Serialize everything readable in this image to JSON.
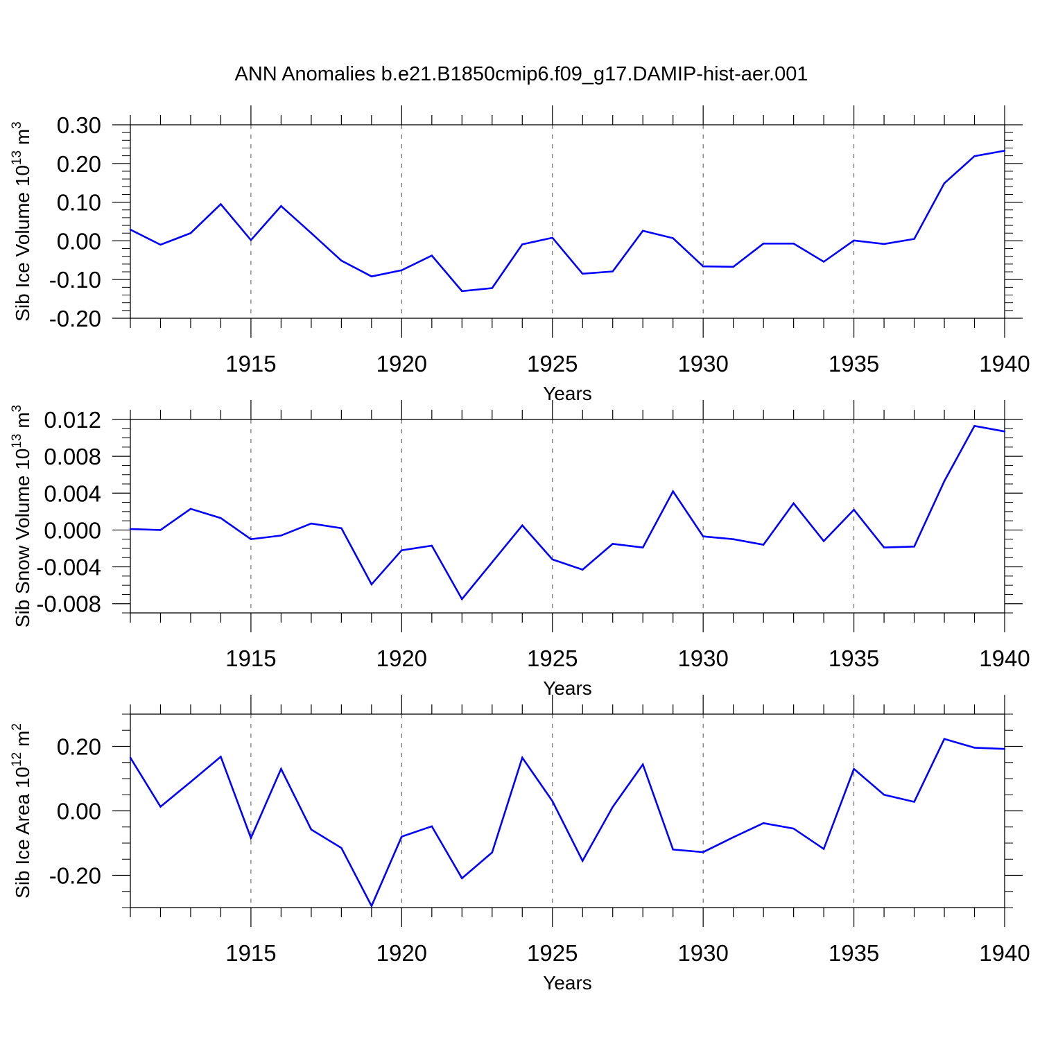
{
  "title": "ANN Anomalies b.e21.B1850cmip6.f09_g17.DAMIP-hist-aer.001",
  "colors": {
    "line": "#0000ff",
    "axis": "#000000",
    "grid": "#555555"
  },
  "chart_data": [
    {
      "type": "line",
      "ylabel_prefix": "Sib Ice Volume 10",
      "ylabel_exp": "13",
      "ylabel_unit": " m",
      "ylabel_unit_exp": "3",
      "xlabel": "Years",
      "xlim": [
        1911,
        1940
      ],
      "ylim": [
        -0.2,
        0.3
      ],
      "yticks": [
        -0.2,
        -0.1,
        0.0,
        0.1,
        0.2,
        0.3
      ],
      "ytick_labels": [
        "-0.20",
        "-0.10",
        "0.00",
        "0.10",
        "0.20",
        "0.30"
      ],
      "yminor_step": 0.02,
      "xticks": [
        1915,
        1920,
        1925,
        1930,
        1935,
        1940
      ],
      "xtick_labels": [
        "1915",
        "1920",
        "1925",
        "1930",
        "1935",
        "1940"
      ],
      "x": [
        1911,
        1912,
        1913,
        1914,
        1915,
        1916,
        1917,
        1918,
        1919,
        1920,
        1921,
        1922,
        1923,
        1924,
        1925,
        1926,
        1927,
        1928,
        1929,
        1930,
        1931,
        1932,
        1933,
        1934,
        1935,
        1936,
        1937,
        1938,
        1939,
        1940
      ],
      "values": [
        0.029,
        -0.01,
        0.02,
        0.095,
        0.002,
        0.09,
        0.02,
        -0.051,
        -0.092,
        -0.076,
        -0.038,
        -0.13,
        -0.122,
        -0.009,
        0.008,
        -0.085,
        -0.079,
        0.026,
        0.007,
        -0.066,
        -0.067,
        -0.007,
        -0.007,
        -0.054,
        0.001,
        -0.008,
        0.005,
        0.149,
        0.219,
        0.233
      ]
    },
    {
      "type": "line",
      "ylabel_prefix": "Sib Snow Volume 10",
      "ylabel_exp": "13",
      "ylabel_unit": " m",
      "ylabel_unit_exp": "3",
      "xlabel": "Years",
      "xlim": [
        1911,
        1940
      ],
      "ylim": [
        -0.009,
        0.012
      ],
      "yticks": [
        -0.008,
        -0.004,
        0.0,
        0.004,
        0.008,
        0.012
      ],
      "ytick_labels": [
        "-0.008",
        "-0.004",
        "0.000",
        "0.004",
        "0.008",
        "0.012"
      ],
      "yminor_step": 0.001,
      "xticks": [
        1915,
        1920,
        1925,
        1930,
        1935,
        1940
      ],
      "xtick_labels": [
        "1915",
        "1920",
        "1925",
        "1930",
        "1935",
        "1940"
      ],
      "x": [
        1911,
        1912,
        1913,
        1914,
        1915,
        1916,
        1917,
        1918,
        1919,
        1920,
        1921,
        1922,
        1923,
        1924,
        1925,
        1926,
        1927,
        1928,
        1929,
        1930,
        1931,
        1932,
        1933,
        1934,
        1935,
        1936,
        1937,
        1938,
        1939,
        1940
      ],
      "values": [
        0.0001,
        0.0,
        0.0023,
        0.0013,
        -0.001,
        -0.0006,
        0.0007,
        0.0002,
        -0.0059,
        -0.0022,
        -0.0017,
        -0.0075,
        -0.0035,
        0.0005,
        -0.0032,
        -0.0043,
        -0.0015,
        -0.0019,
        0.0042,
        -0.0007,
        -0.001,
        -0.0016,
        0.0029,
        -0.0012,
        0.0022,
        -0.0019,
        -0.0018,
        0.0053,
        0.0113,
        0.0107
      ]
    },
    {
      "type": "line",
      "ylabel_prefix": "Sib Ice Area 10",
      "ylabel_exp": "12",
      "ylabel_unit": " m",
      "ylabel_unit_exp": "2",
      "xlabel": "Years",
      "xlim": [
        1911,
        1940
      ],
      "ylim": [
        -0.3,
        0.3
      ],
      "yticks": [
        -0.2,
        0.0,
        0.2
      ],
      "ytick_labels": [
        "-0.20",
        "0.00",
        "0.20"
      ],
      "yminor_step": 0.05,
      "xticks": [
        1915,
        1920,
        1925,
        1930,
        1935,
        1940
      ],
      "xtick_labels": [
        "1915",
        "1920",
        "1925",
        "1930",
        "1935",
        "1940"
      ],
      "x": [
        1911,
        1912,
        1913,
        1914,
        1915,
        1916,
        1917,
        1918,
        1919,
        1920,
        1921,
        1922,
        1923,
        1924,
        1925,
        1926,
        1927,
        1928,
        1929,
        1930,
        1931,
        1932,
        1933,
        1934,
        1935,
        1936,
        1937,
        1938,
        1939,
        1940
      ],
      "values": [
        0.165,
        0.013,
        0.09,
        0.168,
        -0.084,
        0.13,
        -0.058,
        -0.115,
        -0.295,
        -0.08,
        -0.048,
        -0.209,
        -0.129,
        0.165,
        0.03,
        -0.155,
        0.012,
        0.144,
        -0.12,
        -0.128,
        -0.082,
        -0.038,
        -0.055,
        -0.118,
        0.13,
        0.05,
        0.028,
        0.223,
        0.196,
        0.192
      ]
    }
  ]
}
